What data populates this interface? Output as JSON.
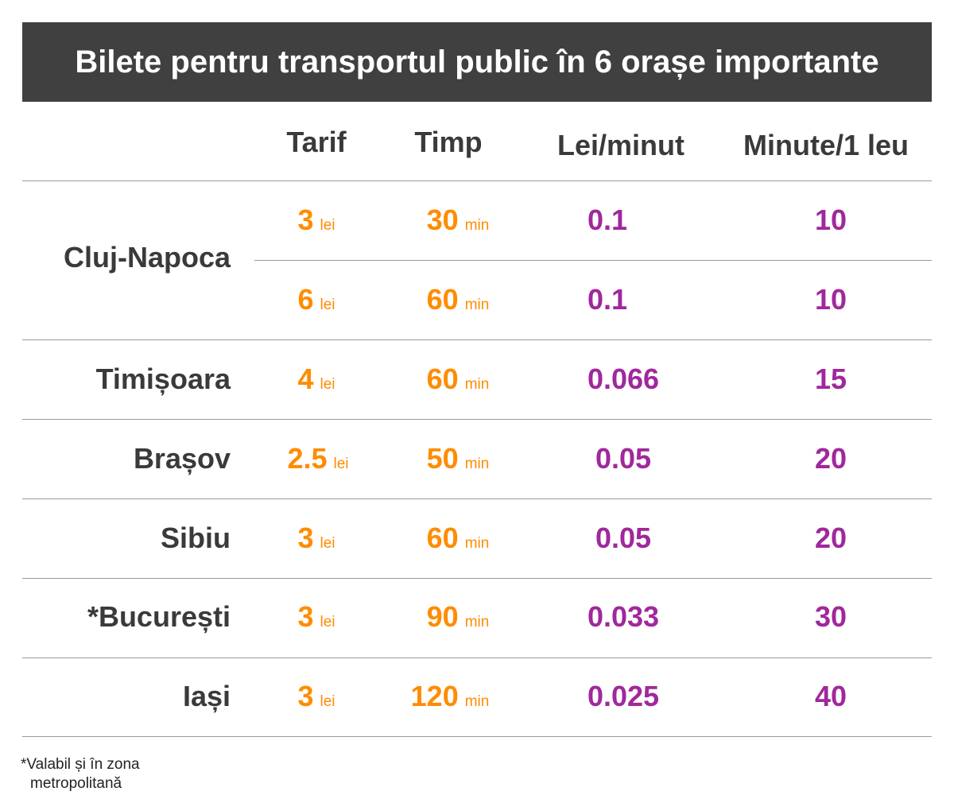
{
  "title": "Bilete pentru transportul public în 6 orașe importante",
  "headers": {
    "tarif": "Tarif",
    "timp": "Timp",
    "lei_minut": "Lei/minut",
    "minute_leu": "Minute/1 leu"
  },
  "units": {
    "lei": "lei",
    "min": "min"
  },
  "rows": [
    {
      "city": "Cluj-Napoca",
      "tarif": "3",
      "timp": "30",
      "lei_minut": "0.1",
      "minute_leu": "10"
    },
    {
      "city": "",
      "tarif": "6",
      "timp": "60",
      "lei_minut": "0.1",
      "minute_leu": "10"
    },
    {
      "city": "Timișoara",
      "tarif": "4",
      "timp": "60",
      "lei_minut": "0.066",
      "minute_leu": "15"
    },
    {
      "city": "Brașov",
      "tarif": "2.5",
      "timp": "50",
      "lei_minut": "0.05",
      "minute_leu": "20"
    },
    {
      "city": "Sibiu",
      "tarif": "3",
      "timp": "60",
      "lei_minut": "0.05",
      "minute_leu": "20"
    },
    {
      "city": "*București",
      "tarif": "3",
      "timp": "90",
      "lei_minut": "0.033",
      "minute_leu": "30"
    },
    {
      "city": "Iași",
      "tarif": "3",
      "timp": "120",
      "lei_minut": "0.025",
      "minute_leu": "40"
    }
  ],
  "footnote": {
    "line1": "*Valabil și în zona",
    "line2": "metropolitană"
  },
  "colors": {
    "title_bg": "#404040",
    "tarif_timp": "#ff8c00",
    "ratios": "#a0289c"
  },
  "chart_data": {
    "type": "table",
    "title": "Bilete pentru transportul public în 6 orașe importante",
    "columns": [
      "",
      "Tarif",
      "Timp",
      "Lei/minut",
      "Minute/1 leu"
    ],
    "rows": [
      [
        "Cluj-Napoca",
        "3 lei",
        "30 min",
        "0.1",
        "10"
      ],
      [
        "Cluj-Napoca",
        "6 lei",
        "60 min",
        "0.1",
        "10"
      ],
      [
        "Timișoara",
        "4 lei",
        "60 min",
        "0.066",
        "15"
      ],
      [
        "Brașov",
        "2.5 lei",
        "50 min",
        "0.05",
        "20"
      ],
      [
        "Sibiu",
        "3 lei",
        "60 min",
        "0.05",
        "20"
      ],
      [
        "*București",
        "3 lei",
        "90 min",
        "0.033",
        "30"
      ],
      [
        "Iași",
        "3 lei",
        "120 min",
        "0.025",
        "40"
      ]
    ]
  }
}
